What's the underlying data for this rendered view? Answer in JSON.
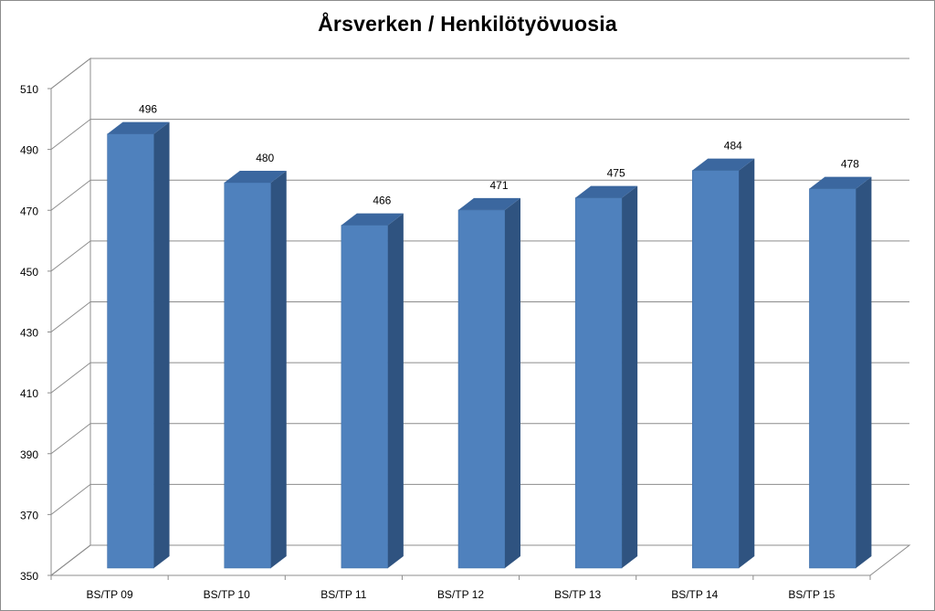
{
  "chart_data": {
    "type": "bar",
    "title": "Årsverken / Henkilötyövuosia",
    "categories": [
      "BS/TP 09",
      "BS/TP 10",
      "BS/TP 11",
      "BS/TP 12",
      "BS/TP 13",
      "BS/TP 14",
      "BS/TP 15"
    ],
    "values": [
      496,
      480,
      466,
      471,
      475,
      484,
      478
    ],
    "data_labels": [
      "496",
      "480",
      "466",
      "471",
      "475",
      "484",
      "478"
    ],
    "ylim": [
      350,
      510
    ],
    "yticks": [
      350,
      370,
      390,
      410,
      430,
      450,
      470,
      490,
      510
    ],
    "xlabel": "",
    "ylabel": "",
    "grid": true,
    "legend": "none",
    "style": "3d-column",
    "colors": {
      "bar_front": "#4f81bd",
      "bar_side": "#2f5380",
      "bar_top": "#3b679f",
      "grid": "#8c8c8c"
    }
  }
}
